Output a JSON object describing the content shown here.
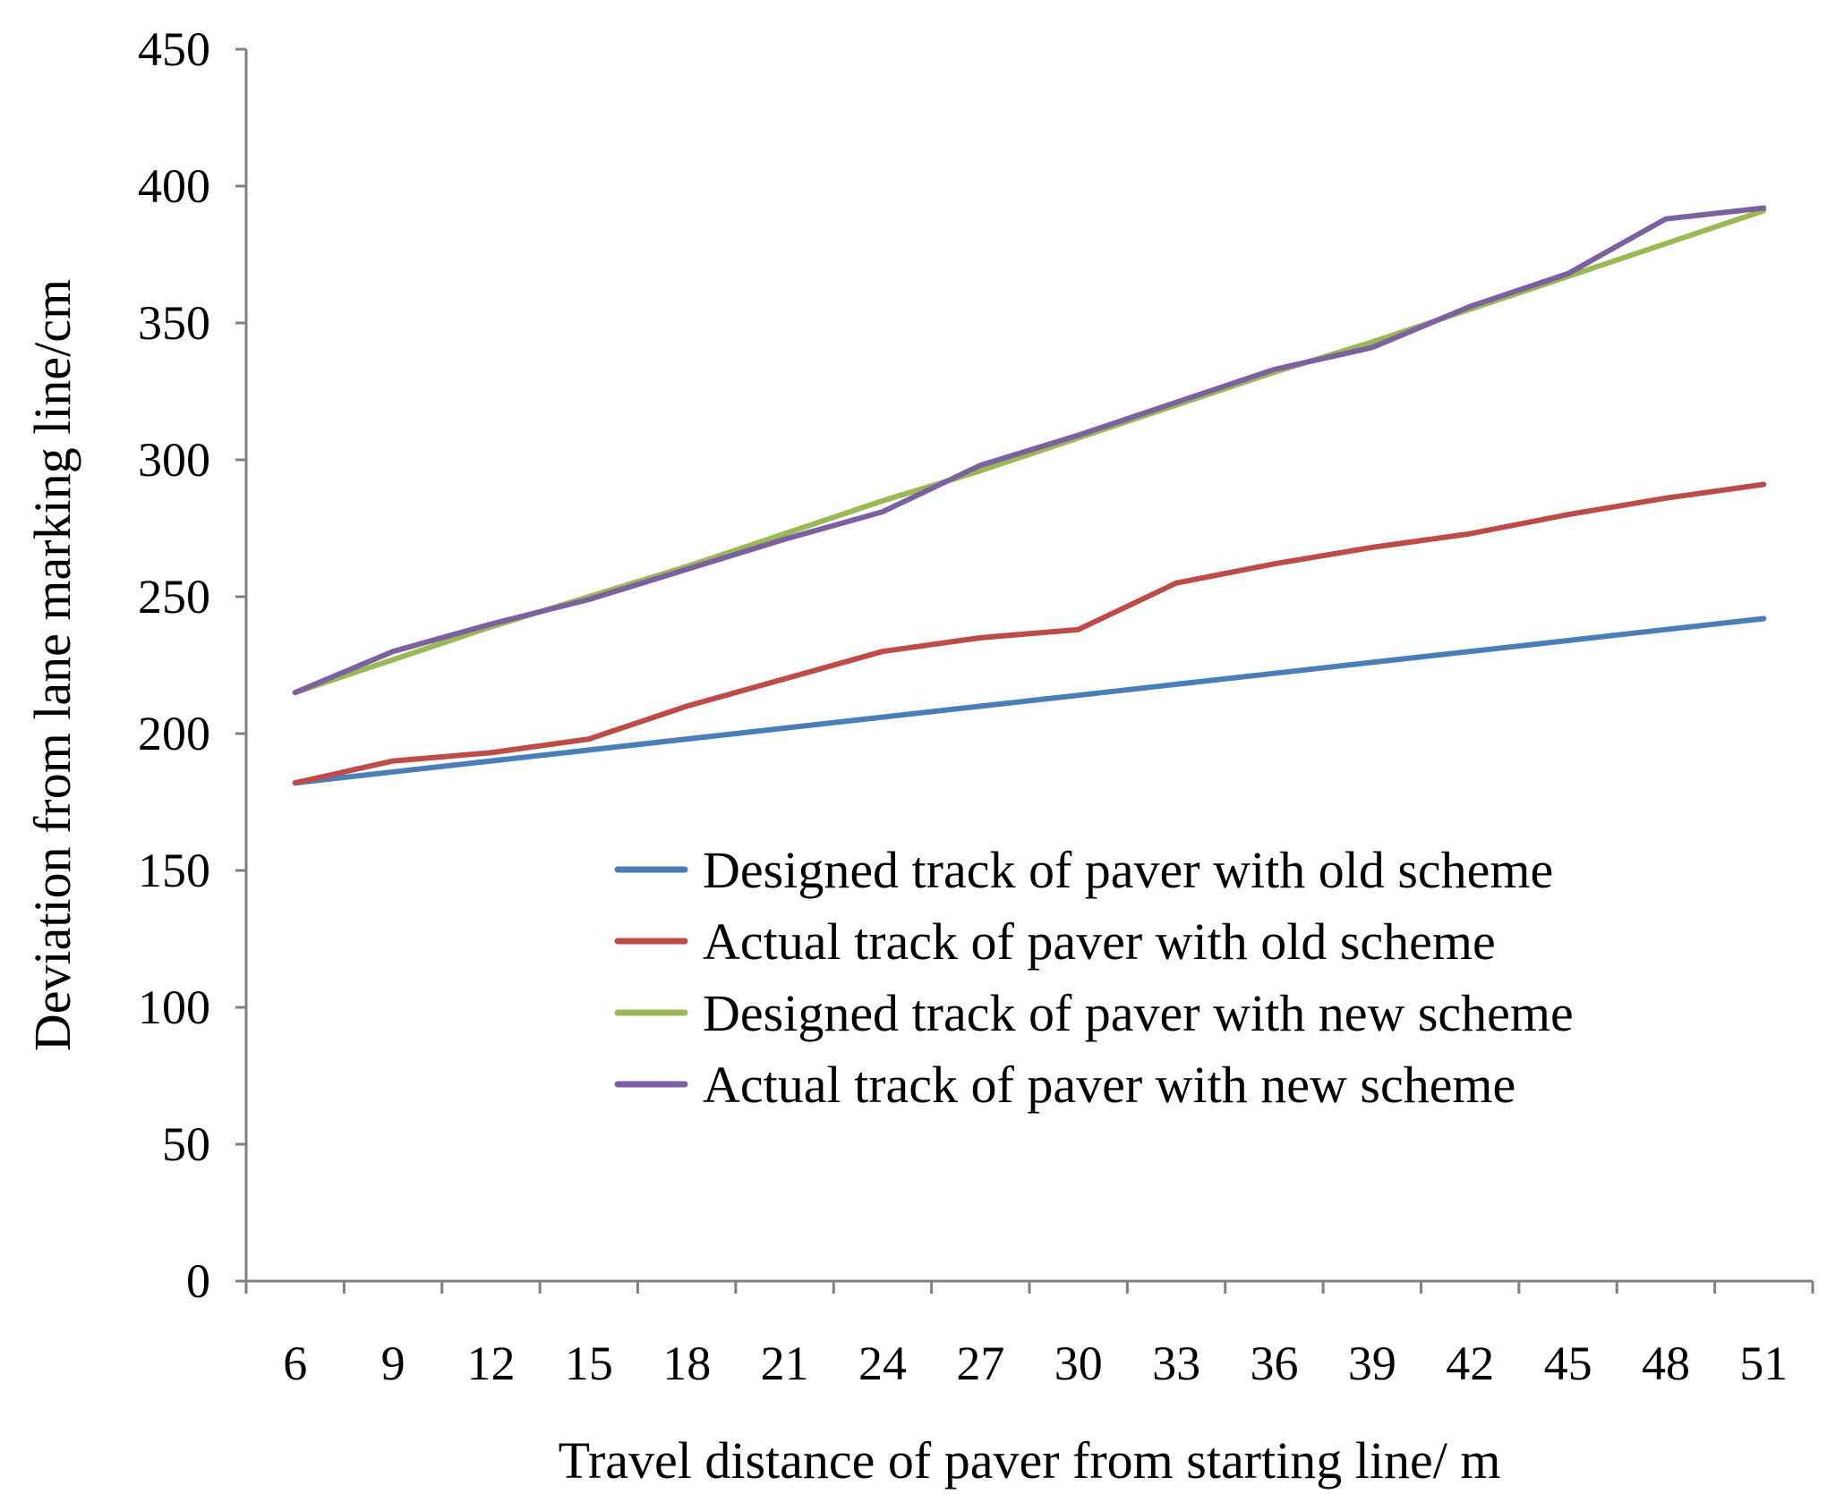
{
  "chart_data": {
    "type": "line",
    "title": "",
    "xlabel": "Travel distance of paver from starting line/ m",
    "ylabel": "Deviation from lane marking line/cm",
    "categories": [
      "6",
      "9",
      "12",
      "15",
      "18",
      "21",
      "24",
      "27",
      "30",
      "33",
      "36",
      "39",
      "42",
      "45",
      "48",
      "51"
    ],
    "ylim": [
      0,
      450
    ],
    "yticks": [
      0,
      50,
      100,
      150,
      200,
      250,
      300,
      350,
      400,
      450
    ],
    "grid": false,
    "legend_position": "center-right",
    "series": [
      {
        "name": "Designed track of paver with old scheme",
        "color": "#4a7ebb",
        "values": [
          182,
          186,
          190,
          194,
          198,
          202,
          206,
          210,
          214,
          218,
          222,
          226,
          230,
          234,
          238,
          242
        ]
      },
      {
        "name": "Actual track of paver with old scheme",
        "color": "#be4b48",
        "values": [
          182,
          190,
          193,
          198,
          210,
          220,
          230,
          235,
          238,
          255,
          262,
          268,
          273,
          280,
          286,
          291
        ]
      },
      {
        "name": "Designed track of paver with new scheme",
        "color": "#98b954",
        "values": [
          215,
          227,
          239,
          250,
          261,
          273,
          285,
          296,
          308,
          320,
          332,
          343,
          355,
          367,
          379,
          391
        ]
      },
      {
        "name": "Actual track of paver with new scheme",
        "color": "#7d60a0",
        "values": [
          215,
          230,
          240,
          249,
          260,
          271,
          281,
          298,
          309,
          321,
          333,
          341,
          356,
          368,
          388,
          392
        ]
      }
    ]
  }
}
